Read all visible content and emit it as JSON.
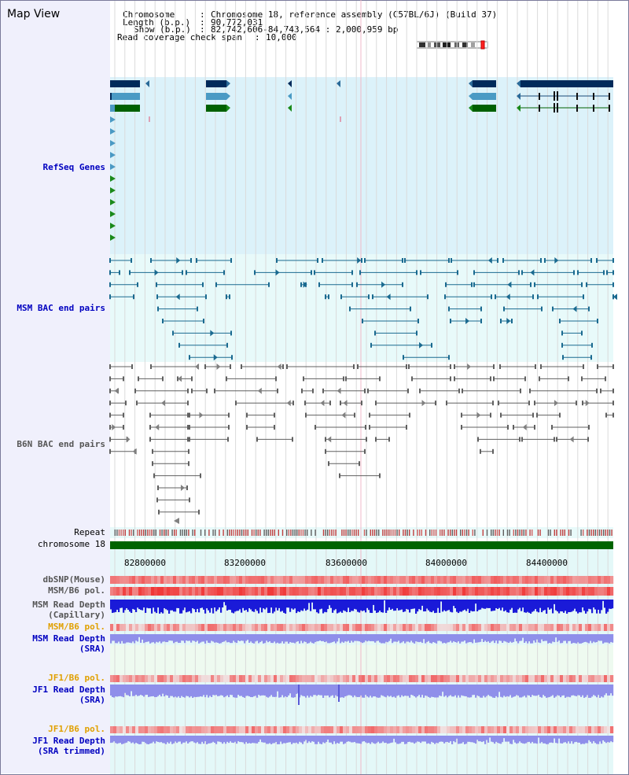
{
  "page_title": "Map View",
  "info": {
    "chromosome_key": "Chromosome",
    "chromosome_value": "Chromosome 18, reference assembly (C57BL/6J) (Build 37)",
    "length_key": "Length (b.p.)",
    "length_value": "90,772,031",
    "show_key": "Show (b.p.)",
    "show_value": "82,742,606-84,743,564 : 2,000,959 bp",
    "coverage_key": "Read coverage check span",
    "coverage_value": "10,000"
  },
  "labels": {
    "refseq": "RefSeq Genes",
    "msm_bac": "MSM BAC end pairs",
    "b6n_bac": "B6N BAC end pairs",
    "repeat": "Repeat",
    "chromosome": "chromosome 18",
    "dbsnp": "dbSNP(Mouse)",
    "msm_b6_pol": "MSM/B6 pol.",
    "msm_read_depth_cap_1": "MSM Read Depth",
    "msm_read_depth_cap_2": "(Capillary)",
    "msm_b6_pol_sra": "MSM/B6 pol.",
    "msm_read_depth_sra_1": "MSM Read Depth",
    "msm_read_depth_sra_2": "(SRA)",
    "jf1_b6_pol": "JF1/B6 pol.",
    "jf1_read_depth_sra_1": "JF1 Read Depth",
    "jf1_read_depth_sra_2": "(SRA)",
    "jf1_b6_pol_trim": "JF1/B6 pol.",
    "jf1_read_depth_trim_1": "JF1 Read Depth",
    "jf1_read_depth_trim_2": "(SRA trimmed)"
  },
  "ruler_ticks": [
    "82800000",
    "83200000",
    "83600000",
    "84000000",
    "84400000"
  ],
  "colors": {
    "label_blue": "#0000c0",
    "label_orange": "#e0a000",
    "msm_teal": "#1a6a90",
    "refseq_navy": "#002a5a",
    "refseq_light": "#3a8ab8",
    "refseq_green": "#006000",
    "b6n_gray": "#606060",
    "chrom_green": "#006400",
    "refseq_bg": "#dcf2fa",
    "msm_bg": "#e8fafa",
    "b6n_bg": "#ffffff",
    "depth_blue": "#1a1ad8",
    "depth_lav": "#8f8fea"
  }
}
